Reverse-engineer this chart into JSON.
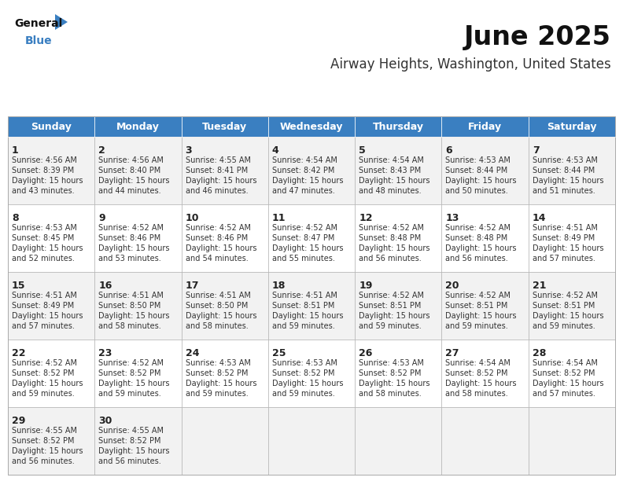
{
  "title": "June 2025",
  "subtitle": "Airway Heights, Washington, United States",
  "header_color": "#3a7fc1",
  "header_text_color": "#ffffff",
  "day_names": [
    "Sunday",
    "Monday",
    "Tuesday",
    "Wednesday",
    "Thursday",
    "Friday",
    "Saturday"
  ],
  "bg_color": "#ffffff",
  "row_colors": [
    "#f2f2f2",
    "#ffffff",
    "#f2f2f2",
    "#ffffff",
    "#f2f2f2"
  ],
  "border_color": "#aaaaaa",
  "title_fontsize": 24,
  "subtitle_fontsize": 12,
  "day_header_fontsize": 9,
  "cell_number_fontsize": 9,
  "cell_text_fontsize": 7,
  "logo_general_fontsize": 10,
  "logo_blue_fontsize": 10,
  "days": [
    {
      "day": 1,
      "col": 0,
      "row": 0,
      "sunrise": "4:56 AM",
      "sunset": "8:39 PM",
      "daylight": "15 hours and 43 minutes."
    },
    {
      "day": 2,
      "col": 1,
      "row": 0,
      "sunrise": "4:56 AM",
      "sunset": "8:40 PM",
      "daylight": "15 hours and 44 minutes."
    },
    {
      "day": 3,
      "col": 2,
      "row": 0,
      "sunrise": "4:55 AM",
      "sunset": "8:41 PM",
      "daylight": "15 hours and 46 minutes."
    },
    {
      "day": 4,
      "col": 3,
      "row": 0,
      "sunrise": "4:54 AM",
      "sunset": "8:42 PM",
      "daylight": "15 hours and 47 minutes."
    },
    {
      "day": 5,
      "col": 4,
      "row": 0,
      "sunrise": "4:54 AM",
      "sunset": "8:43 PM",
      "daylight": "15 hours and 48 minutes."
    },
    {
      "day": 6,
      "col": 5,
      "row": 0,
      "sunrise": "4:53 AM",
      "sunset": "8:44 PM",
      "daylight": "15 hours and 50 minutes."
    },
    {
      "day": 7,
      "col": 6,
      "row": 0,
      "sunrise": "4:53 AM",
      "sunset": "8:44 PM",
      "daylight": "15 hours and 51 minutes."
    },
    {
      "day": 8,
      "col": 0,
      "row": 1,
      "sunrise": "4:53 AM",
      "sunset": "8:45 PM",
      "daylight": "15 hours and 52 minutes."
    },
    {
      "day": 9,
      "col": 1,
      "row": 1,
      "sunrise": "4:52 AM",
      "sunset": "8:46 PM",
      "daylight": "15 hours and 53 minutes."
    },
    {
      "day": 10,
      "col": 2,
      "row": 1,
      "sunrise": "4:52 AM",
      "sunset": "8:46 PM",
      "daylight": "15 hours and 54 minutes."
    },
    {
      "day": 11,
      "col": 3,
      "row": 1,
      "sunrise": "4:52 AM",
      "sunset": "8:47 PM",
      "daylight": "15 hours and 55 minutes."
    },
    {
      "day": 12,
      "col": 4,
      "row": 1,
      "sunrise": "4:52 AM",
      "sunset": "8:48 PM",
      "daylight": "15 hours and 56 minutes."
    },
    {
      "day": 13,
      "col": 5,
      "row": 1,
      "sunrise": "4:52 AM",
      "sunset": "8:48 PM",
      "daylight": "15 hours and 56 minutes."
    },
    {
      "day": 14,
      "col": 6,
      "row": 1,
      "sunrise": "4:51 AM",
      "sunset": "8:49 PM",
      "daylight": "15 hours and 57 minutes."
    },
    {
      "day": 15,
      "col": 0,
      "row": 2,
      "sunrise": "4:51 AM",
      "sunset": "8:49 PM",
      "daylight": "15 hours and 57 minutes."
    },
    {
      "day": 16,
      "col": 1,
      "row": 2,
      "sunrise": "4:51 AM",
      "sunset": "8:50 PM",
      "daylight": "15 hours and 58 minutes."
    },
    {
      "day": 17,
      "col": 2,
      "row": 2,
      "sunrise": "4:51 AM",
      "sunset": "8:50 PM",
      "daylight": "15 hours and 58 minutes."
    },
    {
      "day": 18,
      "col": 3,
      "row": 2,
      "sunrise": "4:51 AM",
      "sunset": "8:51 PM",
      "daylight": "15 hours and 59 minutes."
    },
    {
      "day": 19,
      "col": 4,
      "row": 2,
      "sunrise": "4:52 AM",
      "sunset": "8:51 PM",
      "daylight": "15 hours and 59 minutes."
    },
    {
      "day": 20,
      "col": 5,
      "row": 2,
      "sunrise": "4:52 AM",
      "sunset": "8:51 PM",
      "daylight": "15 hours and 59 minutes."
    },
    {
      "day": 21,
      "col": 6,
      "row": 2,
      "sunrise": "4:52 AM",
      "sunset": "8:51 PM",
      "daylight": "15 hours and 59 minutes."
    },
    {
      "day": 22,
      "col": 0,
      "row": 3,
      "sunrise": "4:52 AM",
      "sunset": "8:52 PM",
      "daylight": "15 hours and 59 minutes."
    },
    {
      "day": 23,
      "col": 1,
      "row": 3,
      "sunrise": "4:52 AM",
      "sunset": "8:52 PM",
      "daylight": "15 hours and 59 minutes."
    },
    {
      "day": 24,
      "col": 2,
      "row": 3,
      "sunrise": "4:53 AM",
      "sunset": "8:52 PM",
      "daylight": "15 hours and 59 minutes."
    },
    {
      "day": 25,
      "col": 3,
      "row": 3,
      "sunrise": "4:53 AM",
      "sunset": "8:52 PM",
      "daylight": "15 hours and 59 minutes."
    },
    {
      "day": 26,
      "col": 4,
      "row": 3,
      "sunrise": "4:53 AM",
      "sunset": "8:52 PM",
      "daylight": "15 hours and 58 minutes."
    },
    {
      "day": 27,
      "col": 5,
      "row": 3,
      "sunrise": "4:54 AM",
      "sunset": "8:52 PM",
      "daylight": "15 hours and 58 minutes."
    },
    {
      "day": 28,
      "col": 6,
      "row": 3,
      "sunrise": "4:54 AM",
      "sunset": "8:52 PM",
      "daylight": "15 hours and 57 minutes."
    },
    {
      "day": 29,
      "col": 0,
      "row": 4,
      "sunrise": "4:55 AM",
      "sunset": "8:52 PM",
      "daylight": "15 hours and 56 minutes."
    },
    {
      "day": 30,
      "col": 1,
      "row": 4,
      "sunrise": "4:55 AM",
      "sunset": "8:52 PM",
      "daylight": "15 hours and 56 minutes."
    }
  ]
}
